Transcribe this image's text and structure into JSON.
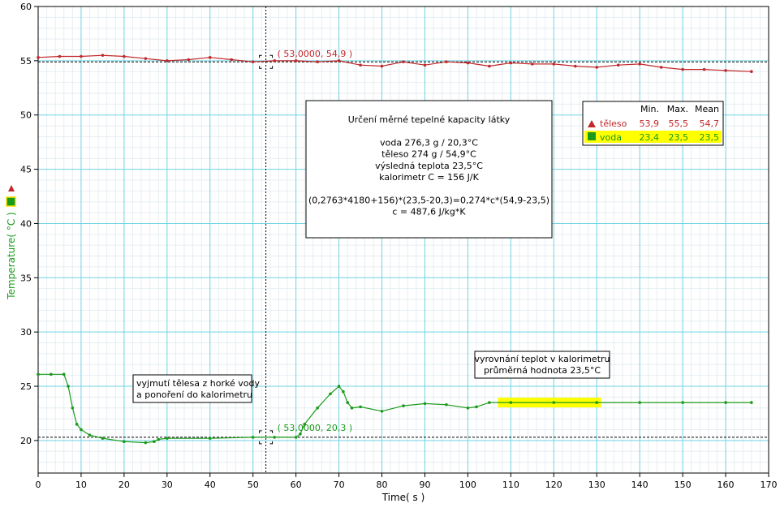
{
  "chart_data": {
    "type": "line",
    "xlabel": "Time( s )",
    "ylabel": "Temperature( °C )",
    "xlim": [
      0,
      170
    ],
    "ylim": [
      17,
      60
    ],
    "xticks": [
      0,
      10,
      20,
      30,
      40,
      50,
      60,
      70,
      80,
      90,
      100,
      110,
      120,
      130,
      140,
      150,
      160,
      170
    ],
    "yticks": [
      20,
      25,
      30,
      35,
      40,
      45,
      50,
      55,
      60
    ],
    "grid": true,
    "legend_position": "top-right",
    "series": [
      {
        "name": "těleso",
        "color": "#c0282c",
        "marker": "triangle",
        "x": [
          0,
          5,
          10,
          15,
          20,
          25,
          30,
          35,
          40,
          45,
          50,
          55,
          60,
          65,
          70,
          75,
          80,
          85,
          90,
          95,
          100,
          105,
          110,
          115,
          120,
          125,
          130,
          135,
          140,
          145,
          150,
          155,
          160,
          166
        ],
        "y": [
          55.3,
          55.4,
          55.4,
          55.5,
          55.4,
          55.2,
          55.0,
          55.1,
          55.3,
          55.1,
          54.9,
          55.0,
          55.0,
          54.9,
          55.0,
          54.6,
          54.5,
          54.9,
          54.6,
          54.9,
          54.8,
          54.5,
          54.8,
          54.7,
          54.7,
          54.5,
          54.4,
          54.6,
          54.7,
          54.4,
          54.2,
          54.2,
          54.1,
          54.0
        ],
        "min": "53,9",
        "max": "55,5",
        "mean": "54,7"
      },
      {
        "name": "voda",
        "color": "#1a9a1a",
        "marker": "square",
        "x": [
          0,
          3,
          6,
          7,
          8,
          9,
          10,
          12,
          15,
          20,
          25,
          27,
          28,
          30,
          40,
          50,
          55,
          60,
          61,
          62,
          65,
          68,
          70,
          71,
          72,
          73,
          75,
          80,
          85,
          90,
          95,
          100,
          102,
          105,
          110,
          120,
          130,
          140,
          150,
          160,
          166
        ],
        "y": [
          26.1,
          26.1,
          26.1,
          25.0,
          23.0,
          21.5,
          21.0,
          20.5,
          20.2,
          19.9,
          19.8,
          19.9,
          20.1,
          20.2,
          20.2,
          20.3,
          20.3,
          20.3,
          20.6,
          21.5,
          23.0,
          24.3,
          25.0,
          24.5,
          23.5,
          23.0,
          23.1,
          22.7,
          23.2,
          23.4,
          23.3,
          23.0,
          23.1,
          23.5,
          23.5,
          23.5,
          23.5,
          23.5,
          23.5,
          23.5,
          23.5
        ],
        "min": "23,4",
        "max": "23,5",
        "mean": "23,5"
      }
    ],
    "cursor": {
      "x": 53.0,
      "ref_y_top": 54.9,
      "ref_y_bottom": 20.3
    },
    "highlight": {
      "x_from": 107,
      "x_to": 131,
      "y": 23.5,
      "color": "#ffff00"
    },
    "annotations": {
      "cursor_top": "( 53,0000, 54,9 )",
      "cursor_bottom": "( 53,0000, 20,3 )",
      "note_left": [
        "vyjmutí tělesa z horké vody",
        "a ponoření do kalorimetru"
      ],
      "note_right": [
        "vyrovnání teplot v kalorimetru",
        "průměrná hodnota 23,5°C"
      ],
      "info_box": [
        "Určení měrné tepelné kapacity látky",
        "",
        "voda 276,3 g / 20,3°C",
        "těleso 274 g / 54,9°C",
        "výsledná teplota 23,5°C",
        "kalorimetr C = 156 J/K",
        "",
        "(0,2763*4180+156)*(23,5-20,3)=0,274*c*(54,9-23,5)",
        "c = 487,6 J/kg*K"
      ]
    },
    "legend_headers": [
      "Min.",
      "Max.",
      "Mean"
    ]
  }
}
